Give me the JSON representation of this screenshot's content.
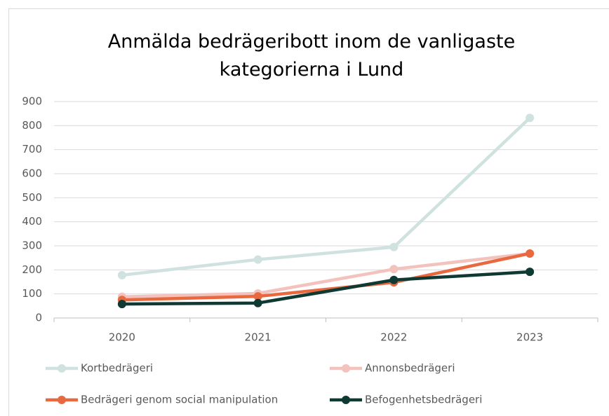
{
  "chart_data": {
    "type": "line",
    "title": "Anmälda bedrägeribott inom de vanligaste kategorierna i Lund",
    "categories": [
      "2020",
      "2021",
      "2022",
      "2023"
    ],
    "series": [
      {
        "name": "Kortbedrägeri",
        "color": "#cfe2df",
        "values": [
          178,
          243,
          295,
          832
        ]
      },
      {
        "name": "Annonsbedrägeri",
        "color": "#f4c2bd",
        "values": [
          88,
          102,
          203,
          268
        ]
      },
      {
        "name": "Bedrägeri genom social manipulation",
        "color": "#e8693f",
        "values": [
          75,
          90,
          148,
          268
        ]
      },
      {
        "name": "Befogenhetsbedrägeri",
        "color": "#0f3a33",
        "values": [
          58,
          62,
          158,
          192
        ]
      }
    ],
    "ylim": [
      0,
      900
    ],
    "yticks": [
      0,
      100,
      200,
      300,
      400,
      500,
      600,
      700,
      800,
      900
    ],
    "grid": true
  }
}
